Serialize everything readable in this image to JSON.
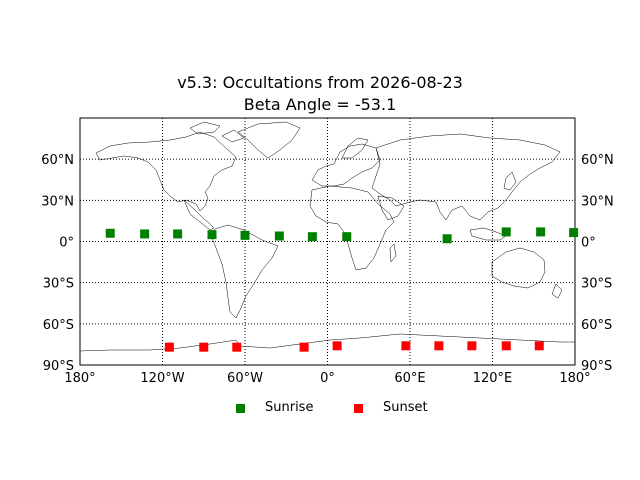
{
  "title_line1": "v5.3: Occultations from 2026-08-23",
  "title_line2": "Beta Angle = -53.1",
  "colors": {
    "sunrise": "#008000",
    "sunset": "#ff0000",
    "land": "#000000",
    "grid": "#000000"
  },
  "chart_data": {
    "type": "scatter",
    "projection": "equirectangular",
    "xlim": [
      -180,
      180
    ],
    "ylim": [
      -90,
      90
    ],
    "grid": true,
    "grid_style": "dotted",
    "x_ticks": [
      -180,
      -120,
      -60,
      0,
      60,
      120,
      180
    ],
    "x_tick_labels": [
      "180°",
      "120°W",
      "60°W",
      "0°",
      "60°E",
      "120°E",
      "180°"
    ],
    "y_ticks": [
      60,
      30,
      0,
      -30,
      -60,
      -90
    ],
    "y_tick_labels": [
      "60°N",
      "30°N",
      "0°",
      "30°S",
      "60°S",
      "90°S"
    ],
    "legend_position": "bottom-center",
    "series": [
      {
        "name": "Sunrise",
        "color": "#008000",
        "points": [
          {
            "lon": -158,
            "lat": 6
          },
          {
            "lon": -133,
            "lat": 5.5
          },
          {
            "lon": -109,
            "lat": 5.5
          },
          {
            "lon": -84,
            "lat": 5
          },
          {
            "lon": -60,
            "lat": 4.5
          },
          {
            "lon": -35,
            "lat": 4
          },
          {
            "lon": -11,
            "lat": 3.5
          },
          {
            "lon": 14,
            "lat": 3.5
          },
          {
            "lon": 87,
            "lat": 2
          },
          {
            "lon": 130,
            "lat": 7
          },
          {
            "lon": 155,
            "lat": 7
          },
          {
            "lon": 179,
            "lat": 6.5
          }
        ]
      },
      {
        "name": "Sunset",
        "color": "#ff0000",
        "points": [
          {
            "lon": -115,
            "lat": -77
          },
          {
            "lon": -90,
            "lat": -77
          },
          {
            "lon": -66,
            "lat": -77
          },
          {
            "lon": -17,
            "lat": -77
          },
          {
            "lon": 7,
            "lat": -76
          },
          {
            "lon": 57,
            "lat": -76
          },
          {
            "lon": 81,
            "lat": -76
          },
          {
            "lon": 105,
            "lat": -76
          },
          {
            "lon": 130,
            "lat": -76
          },
          {
            "lon": 154,
            "lat": -76
          }
        ]
      }
    ]
  }
}
